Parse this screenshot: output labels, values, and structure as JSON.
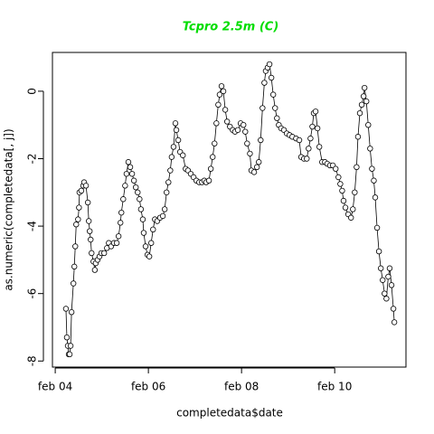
{
  "chart_data": {
    "type": "line",
    "title": "Tcpro 2.5m (C)",
    "title_color": "#00dd00",
    "xlabel": "completedata$date",
    "ylabel": "as.numeric(completedata[, j])",
    "color": "#000000",
    "markers": "open-circle",
    "xlim": [
      2004.02,
      2011.61
    ],
    "ylim": [
      -8.18,
      1.15
    ],
    "xticks": [
      {
        "value": 2004.08,
        "label": "feb 04"
      },
      {
        "value": 2006.08,
        "label": "feb 06"
      },
      {
        "value": 2008.08,
        "label": "feb 08"
      },
      {
        "value": 2010.08,
        "label": "feb 10"
      }
    ],
    "yticks": [
      -8,
      -6,
      -4,
      -2,
      0
    ],
    "x": [
      2004.31,
      2004.33,
      2004.35,
      2004.37,
      2004.39,
      2004.41,
      2004.43,
      2004.47,
      2004.49,
      2004.51,
      2004.53,
      2004.57,
      2004.59,
      2004.6,
      2004.64,
      2004.68,
      2004.7,
      2004.74,
      2004.78,
      2004.8,
      2004.82,
      2004.84,
      2004.86,
      2004.9,
      2004.93,
      2004.95,
      2004.99,
      2005.03,
      2005.07,
      2005.13,
      2005.19,
      2005.23,
      2005.28,
      2005.34,
      2005.4,
      2005.44,
      2005.48,
      2005.5,
      2005.54,
      2005.58,
      2005.61,
      2005.65,
      2005.69,
      2005.73,
      2005.77,
      2005.81,
      2005.85,
      2005.89,
      2005.92,
      2005.96,
      2005.98,
      2006.02,
      2006.06,
      2006.1,
      2006.14,
      2006.18,
      2006.22,
      2006.27,
      2006.33,
      2006.39,
      2006.43,
      2006.47,
      2006.51,
      2006.55,
      2006.58,
      2006.62,
      2006.66,
      2006.68,
      2006.72,
      2006.76,
      2006.82,
      2006.88,
      2006.93,
      2006.99,
      2007.05,
      2007.11,
      2007.17,
      2007.23,
      2007.28,
      2007.32,
      2007.38,
      2007.42,
      2007.46,
      2007.5,
      2007.54,
      2007.58,
      2007.61,
      2007.65,
      2007.69,
      2007.73,
      2007.77,
      2007.83,
      2007.89,
      2007.94,
      2008.0,
      2008.06,
      2008.12,
      2008.16,
      2008.2,
      2008.26,
      2008.29,
      2008.35,
      2008.41,
      2008.45,
      2008.49,
      2008.53,
      2008.57,
      2008.6,
      2008.64,
      2008.68,
      2008.72,
      2008.76,
      2008.8,
      2008.84,
      2008.88,
      2008.93,
      2008.99,
      2009.05,
      2009.11,
      2009.17,
      2009.25,
      2009.32,
      2009.36,
      2009.42,
      2009.48,
      2009.52,
      2009.56,
      2009.6,
      2009.63,
      2009.67,
      2009.71,
      2009.75,
      2009.81,
      2009.87,
      2009.92,
      2009.98,
      2010.04,
      2010.1,
      2010.16,
      2010.2,
      2010.24,
      2010.27,
      2010.31,
      2010.37,
      2010.43,
      2010.47,
      2010.51,
      2010.55,
      2010.58,
      2010.62,
      2010.66,
      2010.7,
      2010.72,
      2010.76,
      2010.8,
      2010.84,
      2010.88,
      2010.92,
      2010.95,
      2010.99,
      2011.03,
      2011.07,
      2011.11,
      2011.15,
      2011.19,
      2011.23,
      2011.26,
      2011.3,
      2011.34,
      2011.36
    ],
    "values": [
      -6.45,
      -7.3,
      -7.55,
      -7.8,
      -7.8,
      -7.55,
      -6.55,
      -5.7,
      -5.2,
      -4.6,
      -3.95,
      -3.8,
      -3.45,
      -3.0,
      -2.95,
      -2.8,
      -2.7,
      -2.8,
      -3.3,
      -3.85,
      -4.15,
      -4.4,
      -4.8,
      -5.05,
      -5.3,
      -5.1,
      -5.0,
      -4.9,
      -4.8,
      -4.8,
      -4.65,
      -4.5,
      -4.6,
      -4.5,
      -4.5,
      -4.3,
      -3.9,
      -3.6,
      -3.2,
      -2.8,
      -2.45,
      -2.1,
      -2.25,
      -2.45,
      -2.65,
      -2.85,
      -3.0,
      -3.2,
      -3.5,
      -3.8,
      -4.2,
      -4.6,
      -4.85,
      -4.9,
      -4.5,
      -4.1,
      -3.8,
      -3.85,
      -3.75,
      -3.7,
      -3.5,
      -3.0,
      -2.7,
      -2.35,
      -1.95,
      -1.65,
      -0.95,
      -1.15,
      -1.45,
      -1.8,
      -1.9,
      -2.3,
      -2.35,
      -2.45,
      -2.55,
      -2.65,
      -2.7,
      -2.7,
      -2.65,
      -2.7,
      -2.65,
      -2.3,
      -1.95,
      -1.55,
      -0.95,
      -0.4,
      -0.1,
      0.15,
      0,
      -0.55,
      -0.9,
      -1.05,
      -1.15,
      -1.2,
      -1.15,
      -0.95,
      -1.0,
      -1.2,
      -1.55,
      -1.85,
      -2.35,
      -2.4,
      -2.25,
      -2.1,
      -1.45,
      -0.5,
      0.25,
      0.6,
      0.7,
      0.8,
      0.4,
      -0.1,
      -0.5,
      -0.8,
      -1.0,
      -1.1,
      -1.15,
      -1.25,
      -1.3,
      -1.35,
      -1.4,
      -1.45,
      -1.95,
      -2.0,
      -2.0,
      -1.7,
      -1.4,
      -1.05,
      -0.65,
      -0.6,
      -1.1,
      -1.65,
      -2.1,
      -2.1,
      -2.15,
      -2.2,
      -2.2,
      -2.3,
      -2.55,
      -2.75,
      -2.95,
      -3.25,
      -3.45,
      -3.65,
      -3.75,
      -3.5,
      -3.0,
      -2.25,
      -1.35,
      -0.65,
      -0.4,
      -0.15,
      0.1,
      -0.3,
      -1.0,
      -1.7,
      -2.3,
      -2.65,
      -3.15,
      -4.05,
      -4.75,
      -5.25,
      -5.6,
      -6.0,
      -6.15,
      -5.5,
      -5.25,
      -5.75,
      -6.45,
      -6.85
    ]
  }
}
